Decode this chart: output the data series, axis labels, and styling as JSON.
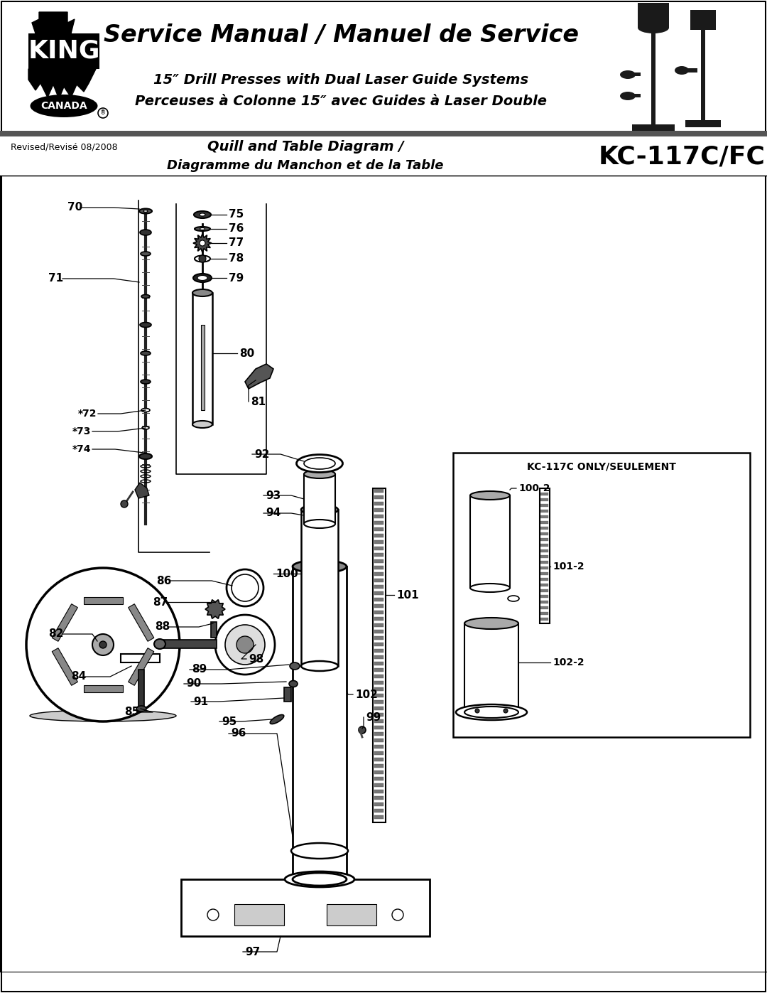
{
  "title_main": "Service Manual / Manuel de Service",
  "title_sub1": "15″ Drill Presses with Dual Laser Guide Systems",
  "title_sub2": "Perceuses à Colonne 15″ avec Guides à Laser Double",
  "diagram_title1": "Quill and Table Diagram /",
  "diagram_title2": "Diagramme du Manchon et de la Table",
  "model": "KC-117C/FC",
  "revised": "Revised/Revisé 08/2008",
  "kc117c_only": "KC-117C ONLY/SEULEMENT",
  "bg_color": "#ffffff",
  "fig_w": 10.8,
  "fig_h": 13.97,
  "dpi": 100
}
